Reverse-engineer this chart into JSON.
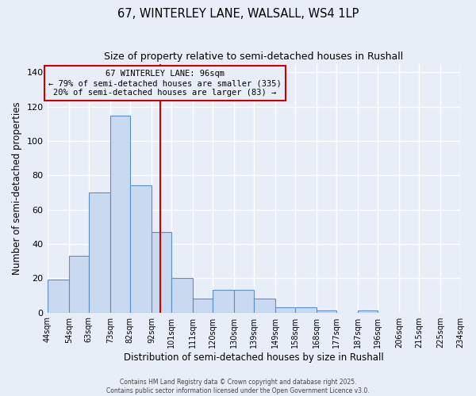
{
  "title": "67, WINTERLEY LANE, WALSALL, WS4 1LP",
  "subtitle": "Size of property relative to semi-detached houses in Rushall",
  "xlabel": "Distribution of semi-detached houses by size in Rushall",
  "ylabel": "Number of semi-detached properties",
  "bar_values": [
    19,
    33,
    70,
    115,
    74,
    47,
    20,
    8,
    13,
    13,
    8,
    3,
    3,
    1,
    0,
    1
  ],
  "bin_labels": [
    "44sqm",
    "54sqm",
    "63sqm",
    "73sqm",
    "82sqm",
    "92sqm",
    "101sqm",
    "111sqm",
    "120sqm",
    "130sqm",
    "139sqm",
    "149sqm",
    "158sqm",
    "168sqm",
    "177sqm",
    "187sqm",
    "196sqm",
    "206sqm",
    "215sqm",
    "225sqm",
    "234sqm"
  ],
  "bin_edges": [
    44,
    54,
    63,
    73,
    82,
    92,
    101,
    111,
    120,
    130,
    139,
    149,
    158,
    168,
    177,
    187,
    196,
    206,
    215,
    225,
    234
  ],
  "bar_color": "#c9d9f0",
  "bar_edge_color": "#5b8fc9",
  "vline_x": 96,
  "vline_color": "#cc0000",
  "ylim": [
    0,
    145
  ],
  "yticks": [
    0,
    20,
    40,
    60,
    80,
    100,
    120,
    140
  ],
  "annotation_title": "67 WINTERLEY LANE: 96sqm",
  "annotation_line1": "← 79% of semi-detached houses are smaller (335)",
  "annotation_line2": "20% of semi-detached houses are larger (83) →",
  "annotation_box_color": "#cc0000",
  "footer1": "Contains HM Land Registry data © Crown copyright and database right 2025.",
  "footer2": "Contains public sector information licensed under the Open Government Licence v3.0.",
  "background_color": "#e8eef8",
  "grid_color": "#ffffff"
}
